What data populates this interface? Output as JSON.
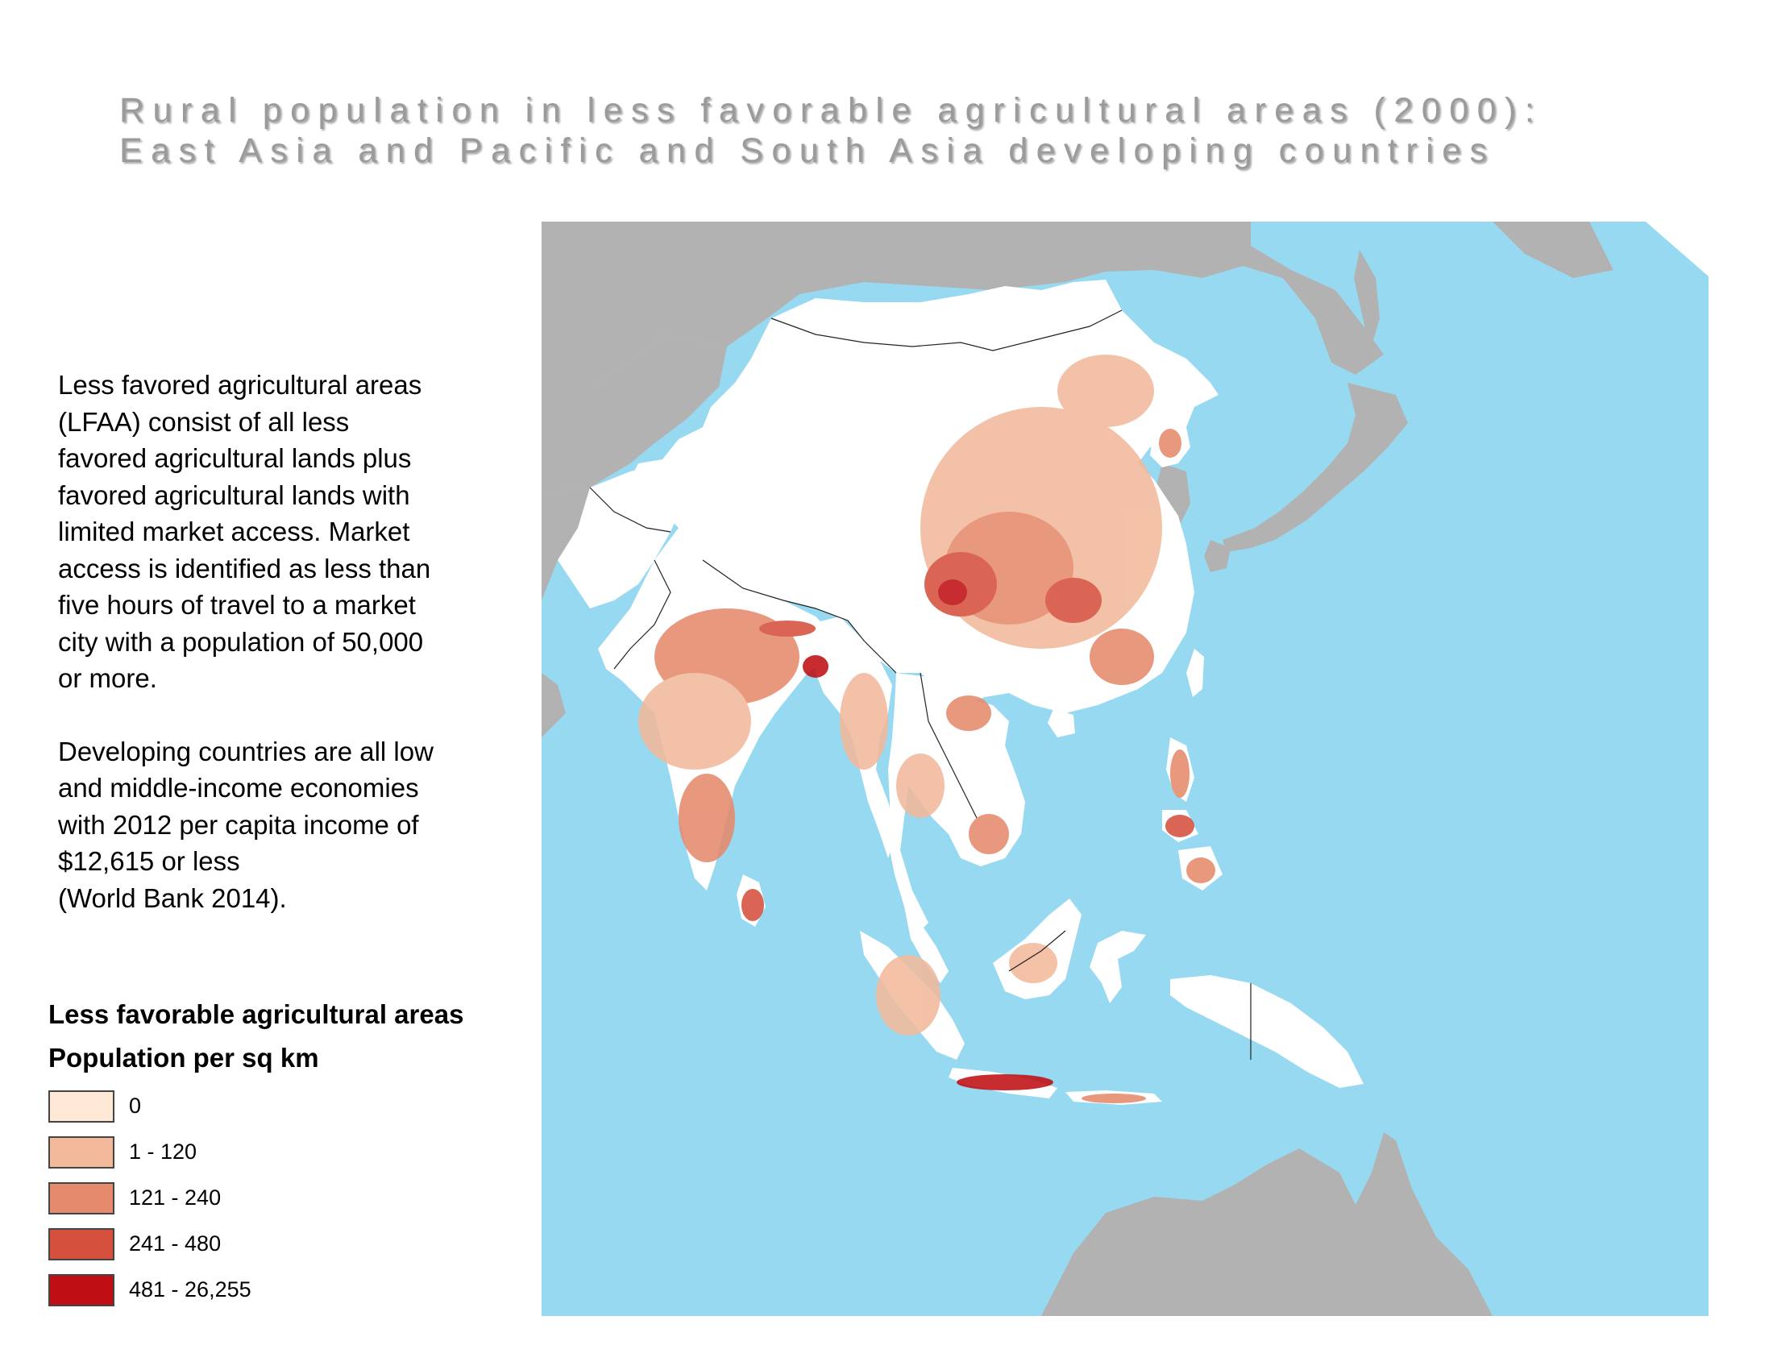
{
  "title": {
    "line1": "Rural population in less favorable agricultural areas (2000):",
    "line2": "East Asia and Pacific and South Asia developing countries"
  },
  "description": {
    "paragraph1": "Less favored agricultural areas\n(LFAA) consist of all less\nfavored agricultural lands plus\nfavored agricultural lands with\nlimited market access. Market\naccess is identified as less than\nfive hours of travel to a market\ncity with a population of 50,000\nor more.",
    "paragraph2": "Developing countries are all low\nand middle-income economies\nwith 2012 per capita income of\n$12,615 or less\n(World Bank 2014)."
  },
  "legend": {
    "heading": "Less favorable agricultural areas",
    "subheading": "Population per sq km",
    "items": [
      {
        "label": "0",
        "color": "#fee8d6"
      },
      {
        "label": "1 - 120",
        "color": "#f2b99b"
      },
      {
        "label": "121 - 240",
        "color": "#e58a6c"
      },
      {
        "label": "241 - 480",
        "color": "#d5503d"
      },
      {
        "label": "481 - 26,255",
        "color": "#c00f14"
      }
    ]
  },
  "map_colors": {
    "ocean": "#97d9f1",
    "other_land": "#b2b2b2",
    "study_land": "#ffffff",
    "border": "#222222"
  }
}
